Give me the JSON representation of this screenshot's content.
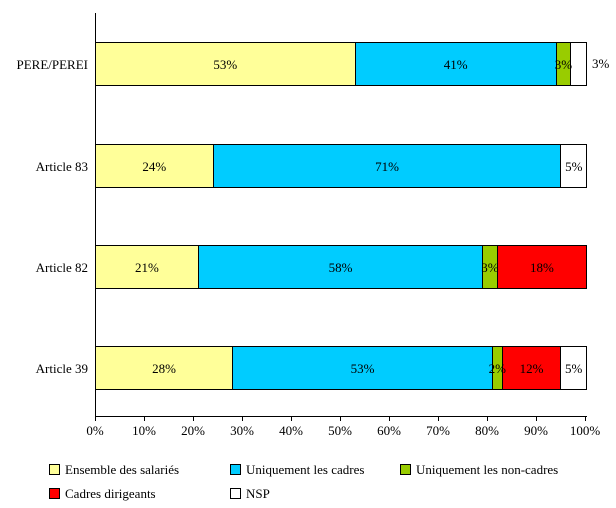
{
  "chart_data": {
    "type": "bar",
    "orientation": "horizontal-stacked",
    "title": "",
    "xlabel": "",
    "ylabel": "",
    "grid": false,
    "legend_position": "bottom",
    "categories": [
      "PERE/PEREI",
      "Article 83",
      "Article 82",
      "Article 39"
    ],
    "series": [
      {
        "name": "Ensemble des salariés",
        "color": "#FFFF99",
        "values": [
          53,
          24,
          21,
          28
        ]
      },
      {
        "name": "Uniquement les cadres",
        "color": "#00CCFF",
        "values": [
          41,
          71,
          58,
          53
        ]
      },
      {
        "name": "Uniquement les non-cadres",
        "color": "#99CC00",
        "values": [
          3,
          0,
          3,
          2
        ]
      },
      {
        "name": "Cadres dirigeants",
        "color": "#FF0000",
        "values": [
          0,
          0,
          18,
          12
        ]
      },
      {
        "name": "NSP",
        "color": "#FFFFFF",
        "values": [
          3,
          5,
          0,
          5
        ]
      }
    ],
    "x_axis": {
      "range": [
        0,
        100
      ],
      "ticks": [
        "0%",
        "10%",
        "20%",
        "30%",
        "40%",
        "50%",
        "60%",
        "70%",
        "80%",
        "90%",
        "100%"
      ]
    },
    "bars": [
      {
        "category": "PERE/PEREI",
        "segments": [
          {
            "s": 0,
            "v": 53,
            "label": "53%"
          },
          {
            "s": 1,
            "v": 41,
            "label": "41%"
          },
          {
            "s": 2,
            "v": 3,
            "label": "3%"
          },
          {
            "s": 4,
            "v": 3,
            "label": "3%",
            "outside": true
          }
        ]
      },
      {
        "category": "Article 83",
        "segments": [
          {
            "s": 0,
            "v": 24,
            "label": "24%"
          },
          {
            "s": 1,
            "v": 71,
            "label": "71%"
          },
          {
            "s": 4,
            "v": 5,
            "label": "5%"
          }
        ]
      },
      {
        "category": "Article 82",
        "segments": [
          {
            "s": 0,
            "v": 21,
            "label": "21%"
          },
          {
            "s": 1,
            "v": 58,
            "label": "58%"
          },
          {
            "s": 2,
            "v": 3,
            "label": "3%"
          },
          {
            "s": 3,
            "v": 18,
            "label": "18%"
          }
        ]
      },
      {
        "category": "Article 39",
        "segments": [
          {
            "s": 0,
            "v": 28,
            "label": "28%"
          },
          {
            "s": 1,
            "v": 53,
            "label": "53%"
          },
          {
            "s": 2,
            "v": 2,
            "label": "2%"
          },
          {
            "s": 3,
            "v": 12,
            "label": "12%"
          },
          {
            "s": 4,
            "v": 5,
            "label": "5%"
          }
        ]
      }
    ],
    "legend": {
      "rows": [
        [
          0,
          1,
          2
        ],
        [
          3,
          4
        ]
      ]
    }
  }
}
